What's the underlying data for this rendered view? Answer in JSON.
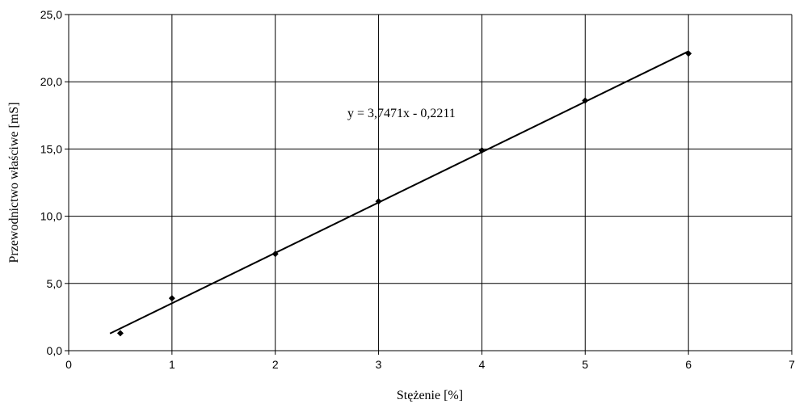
{
  "chart_data": {
    "type": "scatter",
    "title": "",
    "xlabel": "Stężenie [%]",
    "ylabel": "Przewodnictwo właściwe [mS]",
    "xlim": [
      0,
      7
    ],
    "ylim": [
      0,
      25
    ],
    "x_ticks": [
      0,
      1,
      2,
      3,
      4,
      5,
      6,
      7
    ],
    "x_tick_labels": [
      "0",
      "1",
      "2",
      "3",
      "4",
      "5",
      "6",
      "7"
    ],
    "y_ticks": [
      0,
      5,
      10,
      15,
      20,
      25
    ],
    "y_tick_labels": [
      "0,0",
      "5,0",
      "10,0",
      "15,0",
      "20,0",
      "25,0"
    ],
    "grid": true,
    "series": [
      {
        "marker": "diamond",
        "color": "#000000",
        "x": [
          0.5,
          1,
          2,
          3,
          4,
          5,
          6
        ],
        "y": [
          1.3,
          3.9,
          7.2,
          11.1,
          14.9,
          18.6,
          22.1
        ]
      }
    ],
    "trendline": {
      "type": "linear",
      "slope": 3.7471,
      "intercept": -0.2211,
      "x_range": [
        0.4,
        6.0
      ],
      "color": "#000000",
      "equation_label": "y = 3,7471x - 0,2211"
    }
  }
}
